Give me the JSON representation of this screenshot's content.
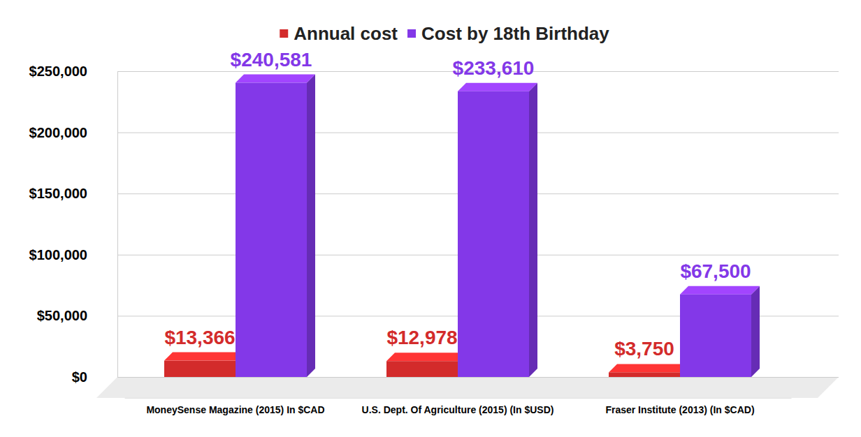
{
  "chart_data": {
    "type": "bar",
    "categories": [
      "MoneySense Magazine (2015) In $CAD",
      "U.S. Dept. Of Agriculture (2015) (In $USD)",
      "Fraser Institute (2013) (In $CAD)"
    ],
    "series": [
      {
        "name": "Annual cost",
        "color": "#d32b2b",
        "values": [
          13366,
          12978,
          3750
        ],
        "value_labels": [
          "$13,366",
          "$12,978",
          "$3,750"
        ]
      },
      {
        "name": "Cost by 18th Birthday",
        "color": "#8338e8",
        "values": [
          240581,
          233610,
          67500
        ],
        "value_labels": [
          "$240,581",
          "$233,610",
          "$67,500"
        ]
      }
    ],
    "ylim": [
      0,
      250000
    ],
    "yticks": [
      {
        "value": 0,
        "label": "$0"
      },
      {
        "value": 50000,
        "label": "$50,000"
      },
      {
        "value": 100000,
        "label": "$100,000"
      },
      {
        "value": 150000,
        "label": "$150,000"
      },
      {
        "value": 200000,
        "label": "$200,000"
      },
      {
        "value": 250000,
        "label": "$250,000"
      }
    ],
    "grid": true,
    "data_labels": true,
    "legend": "top"
  }
}
